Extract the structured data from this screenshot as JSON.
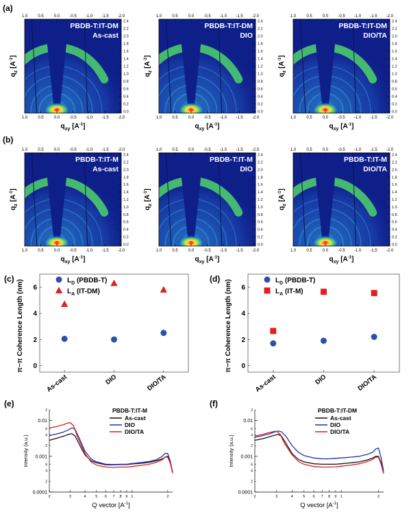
{
  "panel_letters": [
    "(a)",
    "(b)",
    "(c)",
    "(d)",
    "(e)",
    "(f)"
  ],
  "giwaxs": {
    "xlabel": "q",
    "xlabel_sub": "xy",
    "ylabel": "q",
    "ylabel_sub": "z",
    "units": "[A",
    "units_exp": "-1",
    "units_close": "]",
    "x_ticks_top": [
      "1.0",
      "0.5",
      "0.0",
      "-0.5",
      "-1.0",
      "-1.5",
      "-2.0"
    ],
    "x_ticks_bottom": [
      "1.0",
      "0.5",
      "0.0",
      "-0.5",
      "-1.0",
      "-1.5",
      "-2.0"
    ],
    "y_ticks": [
      "0.0",
      "0.2",
      "0.4",
      "0.6",
      "0.8",
      "1.0",
      "1.2",
      "1.4",
      "1.6",
      "1.8",
      "2.0",
      "2.2",
      "2.4"
    ],
    "panels": [
      {
        "row": "a",
        "col": 0,
        "line1": "PBDB-T:IT-DM",
        "line2": "As-cast"
      },
      {
        "row": "a",
        "col": 1,
        "line1": "PBDB-T:IT-DM",
        "line2": "DIO"
      },
      {
        "row": "a",
        "col": 2,
        "line1": "PBDB-T:IT-DM",
        "line2": "DIO/TA"
      },
      {
        "row": "b",
        "col": 0,
        "line1": "PBDB-T:IT-M",
        "line2": "As-cast"
      },
      {
        "row": "b",
        "col": 1,
        "line1": "PBDB-T:IT-M",
        "line2": "DIO"
      },
      {
        "row": "b",
        "col": 2,
        "line1": "PBDB-T:IT-M",
        "line2": "DIO/TA"
      }
    ],
    "colors": {
      "bg": "#0f1f8a",
      "mid": "#2a6fd0",
      "high": "#4fd36b",
      "ring": "#ffe14a",
      "hot": "#ff3b1e"
    }
  },
  "chart_data": [
    {
      "id": "c",
      "type": "scatter",
      "ylabel": "π−π Coherence Length (nm)",
      "categories": [
        "As-cast",
        "DIO",
        "DIO/TA"
      ],
      "ylim": [
        -0.5,
        7
      ],
      "y_ticks": [
        0,
        2,
        4,
        6
      ],
      "legend": "top-left",
      "series": [
        {
          "name": "L",
          "sub": "D",
          "suffix": "(PBDB-T)",
          "marker": "circle",
          "color": "#2c4fa8",
          "values": [
            2.05,
            2.0,
            2.5
          ]
        },
        {
          "name": "L",
          "sub": "A",
          "suffix": "(IT-DM)",
          "marker": "triangle",
          "color": "#e02020",
          "values": [
            4.7,
            6.3,
            5.8
          ]
        }
      ]
    },
    {
      "id": "d",
      "type": "scatter",
      "ylabel": "π−π Coherence Length (nm)",
      "categories": [
        "As-cast",
        "DIO",
        "DIO/TA"
      ],
      "ylim": [
        -0.5,
        7
      ],
      "y_ticks": [
        0,
        2,
        4,
        6
      ],
      "legend": "top-left",
      "series": [
        {
          "name": "L",
          "sub": "D",
          "suffix": "(PBDB-T)",
          "marker": "circle",
          "color": "#2c4fa8",
          "values": [
            1.7,
            1.9,
            2.2
          ]
        },
        {
          "name": "L",
          "sub": "A",
          "suffix": "(IT-M)",
          "marker": "square",
          "color": "#e02020",
          "values": [
            2.65,
            5.65,
            5.55
          ]
        }
      ]
    },
    {
      "id": "e",
      "type": "line",
      "title": "PBDB-T:IT-M",
      "xlabel": "Q vector [A",
      "xlabel_exp": "-1",
      "xlabel_close": "]",
      "ylabel": "Intensity (a.u.)",
      "x_scale": "log",
      "y_scale": "log",
      "xlim": [
        2,
        22
      ],
      "ylim": [
        0.0001,
        0.02
      ],
      "x_ticks_major": [
        {
          "v": 2,
          "t": "2"
        },
        {
          "v": 3,
          "t": "3"
        },
        {
          "v": 4,
          "t": "4"
        },
        {
          "v": 5,
          "t": "5"
        },
        {
          "v": 6,
          "t": "6"
        },
        {
          "v": 7,
          "t": "7"
        },
        {
          "v": 8,
          "t": "8"
        },
        {
          "v": 9,
          "t": "9"
        },
        {
          "v": 10,
          "t": "1"
        },
        {
          "v": 20,
          "t": "2"
        }
      ],
      "y_ticks_major": [
        {
          "v": 0.0001,
          "t": "0.0001"
        },
        {
          "v": 0.001,
          "t": "0.001"
        },
        {
          "v": 0.01,
          "t": "0.01"
        }
      ],
      "y_ticks_minor_labels": [
        {
          "v": 0.002,
          "t": "2"
        },
        {
          "v": 0.004,
          "t": "4"
        },
        {
          "v": 0.006,
          "t": "6"
        },
        {
          "v": 0.02,
          "t": "2"
        },
        {
          "v": 0.0002,
          "t": "2"
        },
        {
          "v": 0.0004,
          "t": "4"
        },
        {
          "v": 0.0006,
          "t": "6"
        }
      ],
      "legend": "top-right",
      "series": [
        {
          "name": "As-cast",
          "color": "#111111",
          "x": [
            2,
            2.3,
            2.6,
            2.9,
            3.1,
            3.3,
            3.6,
            4,
            4.5,
            5,
            6,
            7,
            8,
            9,
            10,
            12,
            14,
            16,
            18,
            19,
            20,
            21,
            22
          ],
          "y": [
            0.0028,
            0.0032,
            0.0036,
            0.0041,
            0.0043,
            0.0037,
            0.0021,
            0.0011,
            0.00075,
            0.00066,
            0.00058,
            0.00058,
            0.00059,
            0.00059,
            0.00061,
            0.00064,
            0.00068,
            0.00075,
            0.00085,
            0.00095,
            0.001,
            0.0007,
            0.00036
          ]
        },
        {
          "name": "DIO",
          "color": "#1f2fb0",
          "x": [
            2,
            2.3,
            2.6,
            2.9,
            3.1,
            3.3,
            3.6,
            4,
            4.5,
            5,
            6,
            7,
            8,
            9,
            10,
            12,
            14,
            16,
            18,
            19,
            20,
            21,
            22
          ],
          "y": [
            0.0038,
            0.0042,
            0.0047,
            0.0055,
            0.0063,
            0.0057,
            0.0031,
            0.0014,
            0.00085,
            0.0007,
            0.0006,
            0.00059,
            0.0006,
            0.0006,
            0.00063,
            0.00067,
            0.00072,
            0.0008,
            0.001,
            0.0012,
            0.0012,
            0.00075,
            0.00035
          ]
        },
        {
          "name": "DIO/TA",
          "color": "#e01b1b",
          "x": [
            2,
            2.3,
            2.6,
            2.9,
            3.0,
            3.2,
            3.5,
            4,
            4.5,
            5,
            6,
            7,
            8,
            9,
            10,
            12,
            14,
            16,
            18,
            19,
            20,
            21,
            22
          ],
          "y": [
            0.0062,
            0.0068,
            0.0076,
            0.0086,
            0.0088,
            0.0072,
            0.0032,
            0.0012,
            0.0007,
            0.00057,
            0.0005,
            0.00049,
            0.0005,
            0.0005,
            0.00052,
            0.00056,
            0.0006,
            0.00068,
            0.0008,
            0.00095,
            0.00095,
            0.00065,
            0.00034
          ]
        }
      ]
    },
    {
      "id": "f",
      "type": "line",
      "title": "PBDB-T:IT-DM",
      "xlabel": "Q vector [A",
      "xlabel_exp": "-1",
      "xlabel_close": "]",
      "ylabel": "Intensity (a.u.)",
      "x_scale": "log",
      "y_scale": "log",
      "xlim": [
        2,
        22
      ],
      "ylim": [
        0.0001,
        0.02
      ],
      "x_ticks_major": [
        {
          "v": 2,
          "t": "2"
        },
        {
          "v": 3,
          "t": "3"
        },
        {
          "v": 4,
          "t": "4"
        },
        {
          "v": 5,
          "t": "5"
        },
        {
          "v": 6,
          "t": "6"
        },
        {
          "v": 7,
          "t": "7"
        },
        {
          "v": 8,
          "t": "8"
        },
        {
          "v": 9,
          "t": "9"
        },
        {
          "v": 10,
          "t": "1"
        },
        {
          "v": 20,
          "t": "2"
        }
      ],
      "y_ticks_major": [
        {
          "v": 0.0001,
          "t": "0.0001"
        },
        {
          "v": 0.001,
          "t": "0.001"
        },
        {
          "v": 0.01,
          "t": "0.01"
        }
      ],
      "y_ticks_minor_labels": [
        {
          "v": 0.002,
          "t": "2"
        },
        {
          "v": 0.004,
          "t": "4"
        },
        {
          "v": 0.006,
          "t": "6"
        },
        {
          "v": 0.02,
          "t": "2"
        },
        {
          "v": 0.0002,
          "t": "2"
        },
        {
          "v": 0.0004,
          "t": "4"
        },
        {
          "v": 0.0006,
          "t": "6"
        }
      ],
      "legend": "top-right",
      "series": [
        {
          "name": "As-cast",
          "color": "#111111",
          "x": [
            2,
            2.3,
            2.6,
            2.9,
            3.1,
            3.3,
            3.6,
            4,
            4.5,
            5,
            6,
            7,
            8,
            9,
            10,
            12,
            14,
            16,
            18,
            19,
            20,
            21,
            22
          ],
          "y": [
            0.0028,
            0.0031,
            0.0035,
            0.0039,
            0.0041,
            0.0036,
            0.0022,
            0.0012,
            0.00082,
            0.0007,
            0.00062,
            0.0006,
            0.0006,
            0.0006,
            0.00062,
            0.00066,
            0.0007,
            0.00078,
            0.0009,
            0.001,
            0.001,
            0.00065,
            0.00034
          ]
        },
        {
          "name": "DIO",
          "color": "#1f2fb0",
          "x": [
            2,
            2.3,
            2.6,
            2.9,
            3.1,
            3.3,
            3.6,
            4,
            4.5,
            5,
            6,
            7,
            8,
            9,
            10,
            12,
            14,
            16,
            18,
            19,
            20,
            21,
            22
          ],
          "y": [
            0.0034,
            0.0038,
            0.0042,
            0.0048,
            0.0051,
            0.0048,
            0.0035,
            0.002,
            0.0013,
            0.00105,
            0.0009,
            0.00085,
            0.00085,
            0.00088,
            0.0009,
            0.00095,
            0.001,
            0.00112,
            0.0013,
            0.0016,
            0.0017,
            0.0009,
            0.00038
          ]
        },
        {
          "name": "DIO/TA",
          "color": "#e01b1b",
          "x": [
            2,
            2.3,
            2.6,
            2.9,
            3.0,
            3.2,
            3.5,
            4,
            4.5,
            5,
            6,
            7,
            8,
            9,
            10,
            12,
            14,
            16,
            18,
            19,
            20,
            21,
            22
          ],
          "y": [
            0.0037,
            0.0041,
            0.0046,
            0.005,
            0.005,
            0.0042,
            0.0022,
            0.0011,
            0.00072,
            0.0006,
            0.00052,
            0.0005,
            0.0005,
            0.00051,
            0.00053,
            0.00057,
            0.00062,
            0.0007,
            0.00082,
            0.00095,
            0.00095,
            0.0006,
            0.00033
          ]
        }
      ]
    }
  ]
}
